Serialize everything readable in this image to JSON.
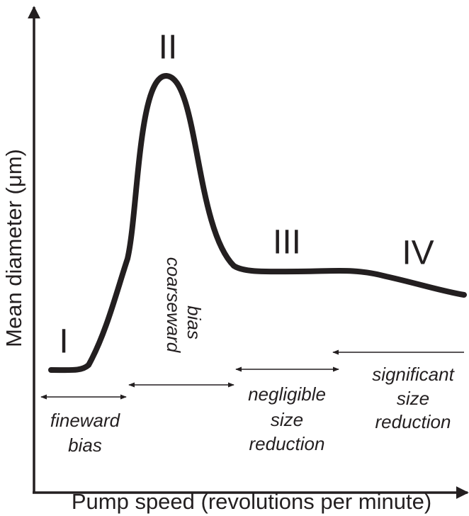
{
  "axes": {
    "x_label": "Pump speed (revolutions per minute)",
    "y_label": "Mean diameter (μm)"
  },
  "regions": [
    "I",
    "II",
    "III",
    "IV"
  ],
  "annotations": {
    "fineward": [
      "fineward",
      "bias"
    ],
    "coarseward": [
      "coarseward",
      "bias"
    ],
    "negligible": [
      "negligible",
      "size",
      "reduction"
    ],
    "significant": [
      "significant",
      "size",
      "reduction"
    ]
  }
}
